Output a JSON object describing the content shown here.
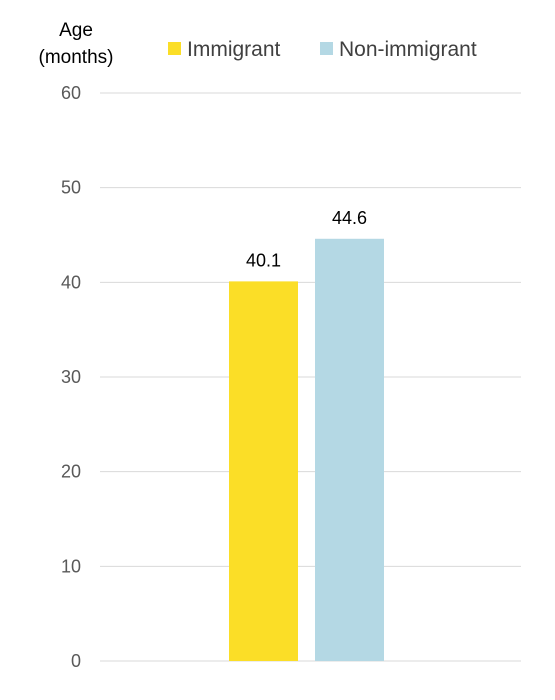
{
  "chart_data": {
    "type": "bar",
    "title": "",
    "ylabel": [
      "Age",
      "(months)"
    ],
    "xlabel": "",
    "ylim": [
      0,
      60
    ],
    "yticks": [
      0,
      10,
      20,
      30,
      40,
      50,
      60
    ],
    "grid": true,
    "legend_position": "top",
    "series": [
      {
        "name": "Immigrant",
        "value": 40.1,
        "label": "40.1",
        "color": "#fbde27"
      },
      {
        "name": "Non-immigrant",
        "value": 44.6,
        "label": "44.6",
        "color": "#b4d8e4"
      }
    ]
  }
}
